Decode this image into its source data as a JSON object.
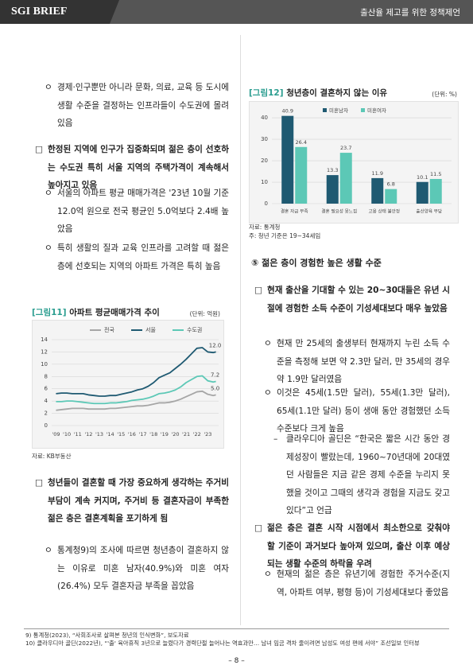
{
  "header": {
    "brand": "SGI BRIEF",
    "title": "출산율 제고를 위한 정책제언"
  },
  "body": {
    "left": [
      {
        "marker": "ㅇ",
        "text": "경제·인구뿐만 아니라 문화, 의료, 교육 등 도시에 생활 수준을 결정하는 인프라들이 수도권에 몰려 있음"
      },
      {
        "marker": "□",
        "text": "한정된 지역에 인구가 집중화되며 젊은 층이 선호하는 수도권 특히 서울 지역의 주택가격이 계속해서 높아지고 있음"
      },
      {
        "marker": "ㅇ",
        "text": "서울의 아파트 평균 매매가격은 '23년 10월 기준 12.0억 원으로 전국 평균인 5.0억보다 2.4배 높았음"
      },
      {
        "marker": "ㅇ",
        "text": "특히 생활의 질과 교육 인프라를 고려할 때 젊은 층에 선호되는 지역의 아파트 가격은 특히 높음"
      },
      {
        "marker": "□",
        "text": "청년들이 결혼할 때 가장 중요하게 생각하는 주거비 부담이 계속 커지며, 주거비 등 결혼자금이 부족한 젊은 층은 결혼계획을 포기하게 됨"
      },
      {
        "marker": "ㅇ",
        "text": "통계청9)의 조사에 따르면 청년층이 결혼하지 않는 이유로 미혼 남자(40.9%)와 미혼 여자(26.4%) 모두 결혼자금 부족을 꼽았음"
      }
    ],
    "section_heading": "⑤ 젊은 층이 경험한 높은 생활 수준",
    "right": [
      {
        "marker": "□",
        "text": "현재 출산을 기대할 수 있는 20~30대들은 유년 시절에 경험한 소득 수준이 기성세대보다 매우 높았음"
      },
      {
        "marker": "ㅇ",
        "text": "현재 만 25세의 출생부터 현재까지 누린 소득 수준을 측정해 보면 약 2.3만 달러, 만 35세의 경우 약 1.9만 달러였음"
      },
      {
        "marker": "ㅇ",
        "text": "이것은 45세(1.5만 달러), 55세(1.3만 달러), 65세(1.1만 달러) 등이 생애 동안 경험했던 소득 수준보다 크게 높음"
      },
      {
        "marker": "–",
        "text": "클라우디아 골딘은 “한국은 짧은 시간 동안 경제성장이 빨랐는데, 1960~70년대에 20대였던 사람들은 지금 같은 경제 수준을 누리지 못했을 것이고 그때의 생각과 경험을 지금도 갖고 있다”고 언급"
      },
      {
        "marker": "□",
        "text": "젊은 층은 결혼 시작 시점에서 최소한으로 갖춰야 할 기준이 과거보다 높아져 있으며, 출산 이후 예상되는 생활 수준의 하락을 우려"
      },
      {
        "marker": "ㅇ",
        "text": "현재의 젊은 층은 유년기에 경험한 주거수준(지역, 아파트 여부, 평형 등)이 기성세대보다 좋았음"
      }
    ]
  },
  "footnotes": [
    "9) 통계청(2023), “사회조사로 살펴본 청년의 인식변화”, 보도자료",
    "10) 클라우디아 골딘(2022년), “'출' 육아휴직 3년으로 늘렸다가 경력단절 늘어나는 역효과만… 남녀 임금 격차 줄이려면 남성도 여성 편에 서야” 조선일보 인터뷰"
  ],
  "page_number": "– 8 –",
  "chart_data": [
    {
      "type": "line",
      "figure_label": "[그림11]",
      "title": "아파트 평균매매가격 추이",
      "unit": "(단위: 억원)",
      "source": "자료: KB부동산",
      "x": [
        2009,
        2009.5,
        2010,
        2010.5,
        2011,
        2011.5,
        2012,
        2012.5,
        2013,
        2013.5,
        2014,
        2014.5,
        2015,
        2015.5,
        2016,
        2016.5,
        2017,
        2017.5,
        2018,
        2018.5,
        2019,
        2019.5,
        2020,
        2020.5,
        2021,
        2021.5,
        2022,
        2022.5,
        2023,
        2023.5,
        2023.75
      ],
      "xlim": [
        2008.6,
        2024.0
      ],
      "xticks": [
        {
          "value": 2009,
          "label": "'09"
        },
        {
          "value": 2010,
          "label": "'10"
        },
        {
          "value": 2011,
          "label": "'11"
        },
        {
          "value": 2012,
          "label": "'12"
        },
        {
          "value": 2013,
          "label": "'13"
        },
        {
          "value": 2014,
          "label": "'14"
        },
        {
          "value": 2015,
          "label": "'15"
        },
        {
          "value": 2016,
          "label": "'16"
        },
        {
          "value": 2017,
          "label": "'17"
        },
        {
          "value": 2018,
          "label": "'18"
        },
        {
          "value": 2019,
          "label": "'19"
        },
        {
          "value": 2020,
          "label": "'20"
        },
        {
          "value": 2021,
          "label": "'21"
        },
        {
          "value": 2022,
          "label": "'22"
        },
        {
          "value": 2023,
          "label": "'23"
        }
      ],
      "ylim": [
        0,
        14
      ],
      "yticks": [
        0,
        2,
        4,
        6,
        8,
        10,
        12,
        14
      ],
      "grid": true,
      "legend": "top",
      "series": [
        {
          "name": "전국",
          "color": "#a6a6a6",
          "values": [
            2.5,
            2.6,
            2.7,
            2.8,
            2.8,
            2.8,
            2.7,
            2.7,
            2.7,
            2.7,
            2.8,
            2.8,
            2.9,
            3.0,
            3.1,
            3.2,
            3.2,
            3.3,
            3.5,
            3.7,
            3.7,
            3.8,
            4.0,
            4.3,
            4.7,
            5.1,
            5.5,
            5.6,
            5.1,
            4.9,
            5.0
          ],
          "value_labels": [
            null,
            null,
            null,
            null,
            null,
            null,
            null,
            null,
            null,
            null,
            null,
            null,
            null,
            null,
            null,
            null,
            null,
            null,
            null,
            null,
            null,
            null,
            null,
            null,
            null,
            null,
            null,
            null,
            null,
            null,
            "5.0"
          ]
        },
        {
          "name": "서울",
          "color": "#1f5a72",
          "values": [
            5.2,
            5.3,
            5.3,
            5.2,
            5.2,
            5.2,
            5.0,
            4.9,
            4.8,
            4.8,
            4.9,
            4.9,
            5.1,
            5.3,
            5.5,
            5.8,
            6.0,
            6.4,
            7.0,
            7.8,
            8.2,
            8.6,
            9.3,
            10.0,
            10.8,
            11.7,
            12.6,
            12.7,
            12.0,
            11.9,
            12.0
          ],
          "value_labels": [
            null,
            null,
            null,
            null,
            null,
            null,
            null,
            null,
            null,
            null,
            null,
            null,
            null,
            null,
            null,
            null,
            null,
            null,
            null,
            null,
            null,
            null,
            null,
            null,
            null,
            null,
            null,
            null,
            null,
            null,
            "12.0"
          ]
        },
        {
          "name": "수도권",
          "color": "#5cc8b6",
          "values": [
            3.9,
            3.9,
            4.0,
            4.0,
            3.9,
            3.8,
            3.7,
            3.6,
            3.6,
            3.6,
            3.7,
            3.7,
            3.8,
            3.9,
            4.1,
            4.2,
            4.3,
            4.5,
            4.8,
            5.2,
            5.3,
            5.5,
            5.8,
            6.3,
            7.0,
            7.5,
            8.0,
            8.1,
            7.3,
            7.1,
            7.2
          ],
          "value_labels": [
            null,
            null,
            null,
            null,
            null,
            null,
            null,
            null,
            null,
            null,
            null,
            null,
            null,
            null,
            null,
            null,
            null,
            null,
            null,
            null,
            null,
            null,
            null,
            null,
            null,
            null,
            null,
            null,
            null,
            null,
            "7.2"
          ]
        }
      ]
    },
    {
      "type": "bar",
      "figure_label": "[그림12]",
      "title": "청년층이 결혼하지 않는 이유",
      "unit": "(단위: %)",
      "source": "자료: 통계청",
      "note": "주: 청년 기준은 19~34세임",
      "categories": [
        "결혼 자금 부족",
        "결혼 필요성 못느낌",
        "고용 상태 불안정",
        "출산양육 부담"
      ],
      "ylim": [
        0,
        43
      ],
      "yticks": [
        0,
        10,
        20,
        30,
        40
      ],
      "grid": true,
      "legend": "top",
      "series": [
        {
          "name": "미혼남자",
          "color": "#1f5a72",
          "values": [
            40.9,
            13.3,
            11.9,
            10.1
          ]
        },
        {
          "name": "미혼여자",
          "color": "#5cc8b6",
          "values": [
            26.4,
            23.7,
            6.8,
            11.5
          ]
        }
      ]
    }
  ]
}
